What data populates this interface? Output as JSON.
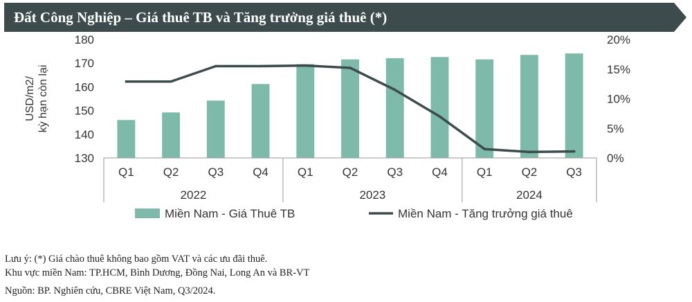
{
  "header": {
    "title": "Đất Công Nghiệp – Giá thuê TB và Tăng trưởng giá thuê (*)",
    "bg_color": "#3e4b4d"
  },
  "chart_data": {
    "type": "bar",
    "categories": [
      "Q1",
      "Q2",
      "Q3",
      "Q4",
      "Q1",
      "Q2",
      "Q3",
      "Q4",
      "Q1",
      "Q2",
      "Q3"
    ],
    "groups": [
      {
        "label": "2022",
        "count": 4
      },
      {
        "label": "2023",
        "count": 4
      },
      {
        "label": "2024",
        "count": 3
      }
    ],
    "series": [
      {
        "name": "Miền Nam - Giá Thuê TB",
        "type": "bar",
        "axis": "left",
        "color": "#7dbaa9",
        "values": [
          146,
          149.2,
          154.2,
          161.2,
          169.6,
          171.6,
          172.1,
          172.6,
          171.6,
          173.5,
          174.1
        ]
      },
      {
        "name": "Miền Nam - Tăng trưởng giá thuê",
        "type": "line",
        "axis": "right",
        "color": "#3e4b4d",
        "values": [
          12.9,
          12.9,
          15.5,
          15.5,
          15.6,
          15.2,
          11.5,
          7.0,
          1.5,
          1.0,
          1.1
        ]
      }
    ],
    "ylabel": [
      "USD/m2/",
      "kỳ hạn còn lại"
    ],
    "ylim": [
      130,
      180
    ],
    "yticks": [
      "130",
      "140",
      "150",
      "160",
      "170",
      "180"
    ],
    "y2lim": [
      0,
      20
    ],
    "y2ticks": [
      "0%",
      "5%",
      "10%",
      "15%",
      "20%"
    ],
    "legend_position": "bottom"
  },
  "notes": {
    "line1": "Lưu ý: (*) Giá chào thuê không bao gồm VAT và các ưu đãi thuê.",
    "line2": "Khu vực miền Nam: TP.HCM, Bình Dương, Đồng Nai, Long An và BR-VT",
    "source": "Nguồn: BP. Nghiên cứu, CBRE Việt Nam, Q3/2024."
  }
}
